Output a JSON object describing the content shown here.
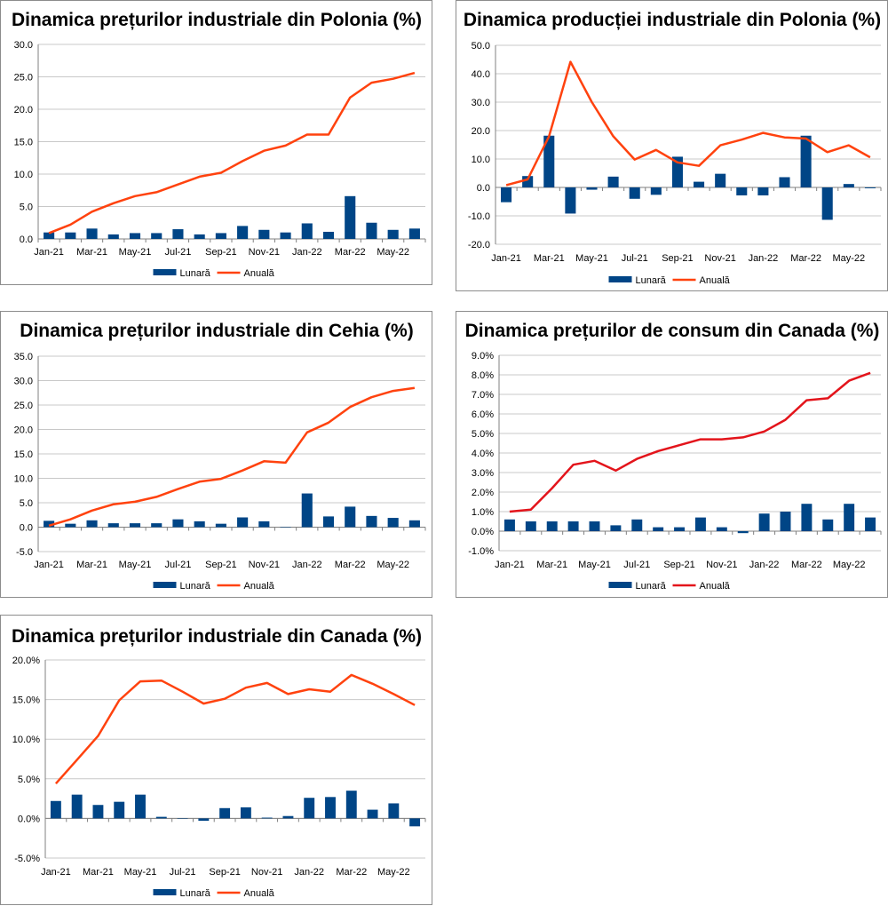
{
  "colors": {
    "bar": "#004586",
    "line_orange": "#ff420e",
    "line_red": "#e3141b"
  },
  "chart_data": [
    {
      "type": "bar+line",
      "title": "Dinamica prețurilor industriale din Polonia (%)",
      "categories": [
        "Jan-21",
        "Feb-21",
        "Mar-21",
        "Apr-21",
        "May-21",
        "Jun-21",
        "Jul-21",
        "Aug-21",
        "Sep-21",
        "Oct-21",
        "Nov-21",
        "Dec-21",
        "Jan-22",
        "Feb-22",
        "Mar-22",
        "Apr-22",
        "May-22",
        "Jun-22"
      ],
      "tick_labels": [
        "Jan-21",
        "Mar-21",
        "May-21",
        "Jul-21",
        "Sep-21",
        "Nov-21",
        "Jan-22",
        "Mar-22",
        "May-22"
      ],
      "y_ticks": [
        "0.0",
        "5.0",
        "10.0",
        "15.0",
        "20.0",
        "25.0",
        "30.0"
      ],
      "ylim": [
        0,
        30
      ],
      "y_step": 5,
      "series": [
        {
          "name": "Lunară",
          "kind": "bar",
          "color": "bar",
          "values": [
            1.0,
            1.0,
            1.6,
            0.7,
            0.9,
            0.9,
            1.5,
            0.7,
            0.9,
            2.0,
            1.4,
            1.0,
            2.4,
            1.1,
            6.6,
            2.5,
            1.4,
            1.6
          ]
        },
        {
          "name": "Anuală",
          "kind": "line",
          "color": "line_orange",
          "values": [
            0.9,
            2.2,
            4.2,
            5.5,
            6.6,
            7.2,
            8.4,
            9.6,
            10.2,
            12.0,
            13.6,
            14.4,
            16.1,
            16.1,
            21.8,
            24.1,
            24.7,
            25.6
          ]
        }
      ],
      "legend": [
        "Lunară",
        "Anuală"
      ]
    },
    {
      "type": "bar+line",
      "title": "Dinamica producției industriale din Polonia (%)",
      "categories": [
        "Jan-21",
        "Feb-21",
        "Mar-21",
        "Apr-21",
        "May-21",
        "Jun-21",
        "Jul-21",
        "Aug-21",
        "Sep-21",
        "Oct-21",
        "Nov-21",
        "Dec-21",
        "Jan-22",
        "Feb-22",
        "Mar-22",
        "Apr-22",
        "May-22",
        "Jun-22"
      ],
      "tick_labels": [
        "Jan-21",
        "Mar-21",
        "May-21",
        "Jul-21",
        "Sep-21",
        "Nov-21",
        "Jan-22",
        "Mar-22",
        "May-22"
      ],
      "y_ticks": [
        "-20.0",
        "-10.0",
        "0.0",
        "10.0",
        "20.0",
        "30.0",
        "40.0",
        "50.0"
      ],
      "ylim": [
        -20,
        50
      ],
      "y_step": 10,
      "series": [
        {
          "name": "Lunară",
          "kind": "bar",
          "color": "bar",
          "values": [
            -5.2,
            4.0,
            18.2,
            -9.2,
            -0.8,
            3.8,
            -4.0,
            -2.6,
            10.8,
            2.0,
            4.8,
            -2.8,
            -2.8,
            3.6,
            18.2,
            -11.4,
            1.2,
            -0.3
          ]
        },
        {
          "name": "Anuală",
          "kind": "line",
          "color": "line_orange",
          "values": [
            0.8,
            2.8,
            18.0,
            44.2,
            30.0,
            18.0,
            9.8,
            13.2,
            8.8,
            7.6,
            14.8,
            16.8,
            19.2,
            17.6,
            17.2,
            12.4,
            14.8,
            10.6
          ]
        }
      ],
      "legend": [
        "Lunară",
        "Anuală"
      ]
    },
    {
      "type": "bar+line",
      "title": "Dinamica prețurilor industriale din Cehia (%)",
      "categories": [
        "Jan-21",
        "Feb-21",
        "Mar-21",
        "Apr-21",
        "May-21",
        "Jun-21",
        "Jul-21",
        "Aug-21",
        "Sep-21",
        "Oct-21",
        "Nov-21",
        "Dec-21",
        "Jan-22",
        "Feb-22",
        "Mar-22",
        "Apr-22",
        "May-22",
        "Jun-22"
      ],
      "tick_labels": [
        "Jan-21",
        "Mar-21",
        "May-21",
        "Jul-21",
        "Sep-21",
        "Nov-21",
        "Jan-22",
        "Mar-22",
        "May-22"
      ],
      "y_ticks": [
        "-5.0",
        "0.0",
        "5.0",
        "10.0",
        "15.0",
        "20.0",
        "25.0",
        "30.0",
        "35.0"
      ],
      "ylim": [
        -5,
        35
      ],
      "y_step": 5,
      "series": [
        {
          "name": "Lunară",
          "kind": "bar",
          "color": "bar",
          "values": [
            1.3,
            0.7,
            1.4,
            0.8,
            0.8,
            0.8,
            1.6,
            1.2,
            0.7,
            2.0,
            1.2,
            -0.1,
            6.9,
            2.2,
            4.2,
            2.3,
            1.9,
            1.4
          ]
        },
        {
          "name": "Anuală",
          "kind": "line",
          "color": "line_orange",
          "values": [
            0.3,
            1.6,
            3.4,
            4.7,
            5.2,
            6.2,
            7.8,
            9.3,
            9.9,
            11.6,
            13.5,
            13.2,
            19.4,
            21.4,
            24.6,
            26.6,
            27.9,
            28.5
          ]
        }
      ],
      "legend": [
        "Lunară",
        "Anuală"
      ]
    },
    {
      "type": "bar+line",
      "title": "Dinamica prețurilor de consum din Canada (%)",
      "categories": [
        "Jan-21",
        "Feb-21",
        "Mar-21",
        "Apr-21",
        "May-21",
        "Jun-21",
        "Jul-21",
        "Aug-21",
        "Sep-21",
        "Oct-21",
        "Nov-21",
        "Dec-21",
        "Jan-22",
        "Feb-22",
        "Mar-22",
        "Apr-22",
        "May-22",
        "Jun-22"
      ],
      "tick_labels": [
        "Jan-21",
        "Mar-21",
        "May-21",
        "Jul-21",
        "Sep-21",
        "Nov-21",
        "Jan-22",
        "Mar-22",
        "May-22"
      ],
      "y_ticks": [
        "-1.0%",
        "0.0%",
        "1.0%",
        "2.0%",
        "3.0%",
        "4.0%",
        "5.0%",
        "6.0%",
        "7.0%",
        "8.0%",
        "9.0%"
      ],
      "ylim": [
        -1,
        9
      ],
      "y_step": 1,
      "series": [
        {
          "name": "Lunară",
          "kind": "bar",
          "color": "bar",
          "values": [
            0.6,
            0.5,
            0.5,
            0.5,
            0.5,
            0.3,
            0.6,
            0.2,
            0.2,
            0.7,
            0.2,
            -0.1,
            0.9,
            1.0,
            1.4,
            0.6,
            1.4,
            0.7
          ]
        },
        {
          "name": "Anuală",
          "kind": "line",
          "color": "line_red",
          "values": [
            1.0,
            1.1,
            2.2,
            3.4,
            3.6,
            3.1,
            3.7,
            4.1,
            4.4,
            4.7,
            4.7,
            4.8,
            5.1,
            5.7,
            6.7,
            6.8,
            7.7,
            8.1
          ]
        }
      ],
      "legend": [
        "Lunară",
        "Anuală"
      ]
    },
    {
      "type": "bar+line",
      "title": "Dinamica prețurilor industriale din Canada (%)",
      "categories": [
        "Jan-21",
        "Feb-21",
        "Mar-21",
        "Apr-21",
        "May-21",
        "Jun-21",
        "Jul-21",
        "Aug-21",
        "Sep-21",
        "Oct-21",
        "Nov-21",
        "Dec-21",
        "Jan-22",
        "Feb-22",
        "Mar-22",
        "Apr-22",
        "May-22",
        "Jun-22"
      ],
      "tick_labels": [
        "Jan-21",
        "Mar-21",
        "May-21",
        "Jul-21",
        "Sep-21",
        "Nov-21",
        "Jan-22",
        "Mar-22",
        "May-22"
      ],
      "y_ticks": [
        "-5.0%",
        "0.0%",
        "5.0%",
        "10.0%",
        "15.0%",
        "20.0%"
      ],
      "ylim": [
        -5,
        20
      ],
      "y_step": 5,
      "series": [
        {
          "name": "Lunară",
          "kind": "bar",
          "color": "bar",
          "values": [
            2.2,
            3.0,
            1.7,
            2.1,
            3.0,
            0.2,
            0.0,
            -0.3,
            1.3,
            1.4,
            0.1,
            0.3,
            2.6,
            2.7,
            3.5,
            1.1,
            1.9,
            -1.0
          ]
        },
        {
          "name": "Anuală",
          "kind": "line",
          "color": "line_orange",
          "values": [
            4.4,
            7.4,
            10.4,
            14.9,
            17.3,
            17.4,
            16.0,
            14.5,
            15.1,
            16.5,
            17.1,
            15.7,
            16.3,
            16.0,
            18.1,
            17.0,
            15.7,
            14.3
          ]
        }
      ],
      "legend": [
        "Lunară",
        "Anuală"
      ]
    }
  ]
}
